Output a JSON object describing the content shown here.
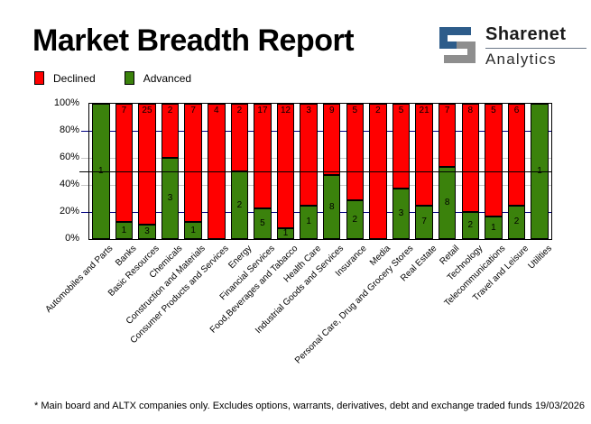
{
  "title": "Market Breadth Report",
  "logo": {
    "line1": "Sharenet",
    "line2": "Analytics",
    "blue": "#2D5C8A",
    "gray": "#8E8E8E"
  },
  "legend": [
    {
      "label": "Declined",
      "color": "#FF0000"
    },
    {
      "label": "Advanced",
      "color": "#3B820C"
    }
  ],
  "footnote": "* Main board and ALTX companies only. Excludes options, warrants, derivatives, debt and exchange traded funds",
  "date": "19/03/2026",
  "chart_data": {
    "type": "bar",
    "stacked": true,
    "normalized": "percent",
    "title": "Market Breadth Report",
    "ylabel": "",
    "xlabel": "",
    "ylim": [
      0,
      100
    ],
    "y_ticks": [
      100,
      80,
      60,
      40,
      20,
      0
    ],
    "legend_position": "top-left",
    "categories": [
      "Automobiles and Parts",
      "Banks",
      "Basic Resources",
      "Chemicals",
      "Construction and Materials",
      "Consumer Products and Services",
      "Energy",
      "Financial Services",
      "Food,Beverages and Tabacco",
      "Health Care",
      "Industrial Goods and Services",
      "Insurance",
      "Media",
      "Personal Care, Drug and Grocery Stores",
      "Real Estate",
      "Retail",
      "Technology",
      "Telecommunications",
      "Travel and Leisure",
      "Utilities"
    ],
    "series": [
      {
        "name": "Declined",
        "color": "#FF0000",
        "values": [
          0,
          7,
          25,
          2,
          7,
          4,
          2,
          17,
          12,
          3,
          9,
          5,
          2,
          5,
          21,
          7,
          8,
          5,
          6,
          0
        ]
      },
      {
        "name": "Advanced",
        "color": "#3B820C",
        "values": [
          1,
          1,
          3,
          3,
          1,
          0,
          2,
          5,
          1,
          1,
          8,
          2,
          0,
          3,
          7,
          8,
          2,
          1,
          2,
          1
        ]
      }
    ],
    "gridlines": {
      "navy_pcts": [
        20,
        80
      ],
      "gray_pcts": [
        40,
        60
      ],
      "black_pcts": [
        50
      ]
    },
    "colors": {
      "grid_navy": "#000080",
      "grid_gray": "#C6C6C6",
      "grid_black": "#000000"
    }
  }
}
